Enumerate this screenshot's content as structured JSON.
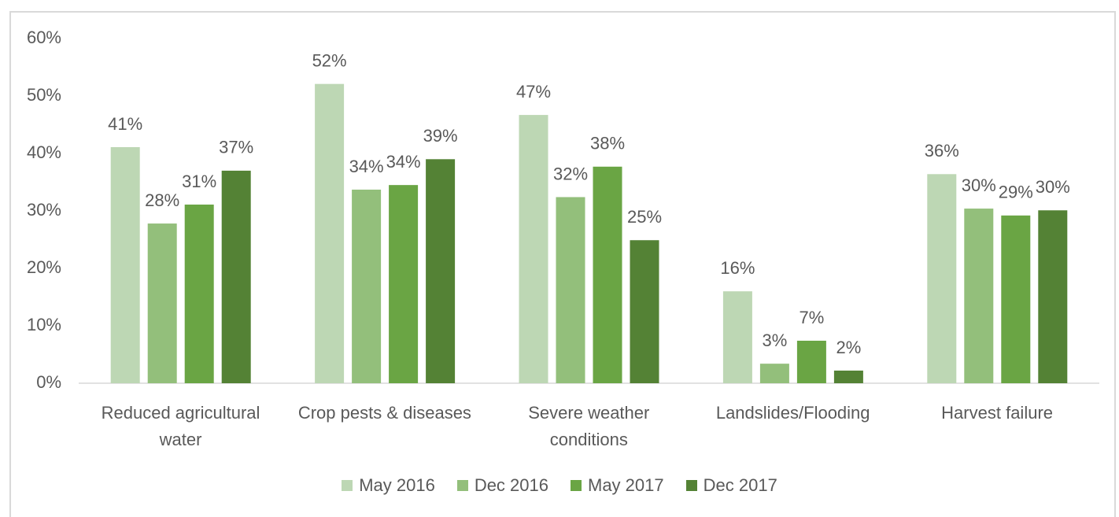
{
  "chart_data": {
    "type": "bar",
    "categories": [
      "Reduced agricultural water",
      "Crop pests & diseases",
      "Severe weather conditions",
      "Landslides/Flooding",
      "Harvest failure"
    ],
    "series": [
      {
        "name": "May 2016",
        "color": "#bdd7b4",
        "values": [
          41.1,
          52.1,
          46.7,
          16.0,
          36.4
        ],
        "value_labels": [
          "41%",
          "52%",
          "47%",
          "16%",
          "36%"
        ]
      },
      {
        "name": "Dec 2016",
        "color": "#93bf7b",
        "values": [
          27.8,
          33.7,
          32.4,
          3.4,
          30.4
        ],
        "value_labels": [
          "28%",
          "34%",
          "32%",
          "3%",
          "30%"
        ]
      },
      {
        "name": "May 2017",
        "color": "#6aa544",
        "values": [
          31.1,
          34.5,
          37.7,
          7.4,
          29.2
        ],
        "value_labels": [
          "31%",
          "34%",
          "38%",
          "7%",
          "29%"
        ]
      },
      {
        "name": "Dec 2017",
        "color": "#548235",
        "values": [
          37.0,
          39.0,
          24.9,
          2.2,
          30.1
        ],
        "value_labels": [
          "37%",
          "39%",
          "25%",
          "2%",
          "30%"
        ]
      }
    ],
    "ylim": [
      0,
      60
    ],
    "yticks": [
      {
        "value": 0,
        "label": "0%"
      },
      {
        "value": 10,
        "label": "10%"
      },
      {
        "value": 20,
        "label": "20%"
      },
      {
        "value": 30,
        "label": "30%"
      },
      {
        "value": 40,
        "label": "40%"
      },
      {
        "value": 50,
        "label": "50%"
      },
      {
        "value": 60,
        "label": "60%"
      }
    ],
    "grid": false,
    "legend": "bottom"
  }
}
